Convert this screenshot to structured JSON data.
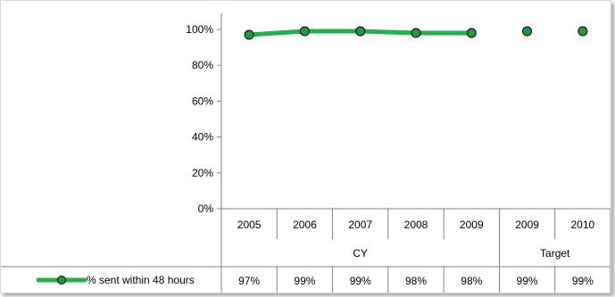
{
  "chart_data": {
    "type": "line",
    "title": "",
    "xlabel": "",
    "ylabel": "",
    "ylim": [
      0,
      100
    ],
    "yticks": [
      "0%",
      "20%",
      "40%",
      "60%",
      "80%",
      "100%"
    ],
    "yticks_values": [
      0,
      20,
      40,
      60,
      80,
      100
    ],
    "grid": false,
    "categories": [
      "2005",
      "2006",
      "2007",
      "2008",
      "2009",
      "2009",
      "2010"
    ],
    "groups": [
      {
        "label": "CY",
        "span": 5
      },
      {
        "label": "Target",
        "span": 2
      }
    ],
    "series": [
      {
        "name": "% sent within 48 hours",
        "color": "#22b14c",
        "marker_color": "#1e9b3c",
        "values": [
          97,
          99,
          99,
          98,
          98,
          99,
          99
        ],
        "value_labels": [
          "97%",
          "99%",
          "99%",
          "98%",
          "98%",
          "99%",
          "99%"
        ],
        "connected_points": 5
      }
    ],
    "legend": "bottom-left (data table)"
  }
}
